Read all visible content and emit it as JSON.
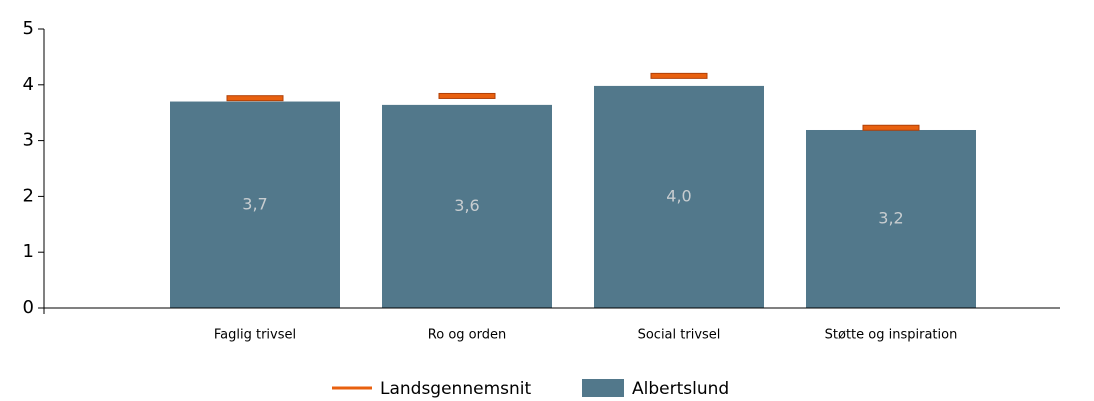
{
  "chart_data": {
    "type": "bar",
    "categories": [
      "Faglig trivsel",
      "Ro og orden",
      "Social trivsel",
      "Støtte og inspiration"
    ],
    "series": [
      {
        "name": "Landsgennemsnit",
        "color": "#e8600f",
        "values": [
          3.76,
          3.8,
          4.16,
          3.23
        ]
      },
      {
        "name": "Albertslund",
        "color": "#52788b",
        "values": [
          3.7,
          3.64,
          3.98,
          3.19
        ],
        "value_labels": [
          "3,7",
          "3,6",
          "4,0",
          "3,2"
        ]
      }
    ],
    "ylim": [
      0,
      5
    ],
    "yticks": [
      0,
      1,
      2,
      3,
      4,
      5
    ]
  }
}
